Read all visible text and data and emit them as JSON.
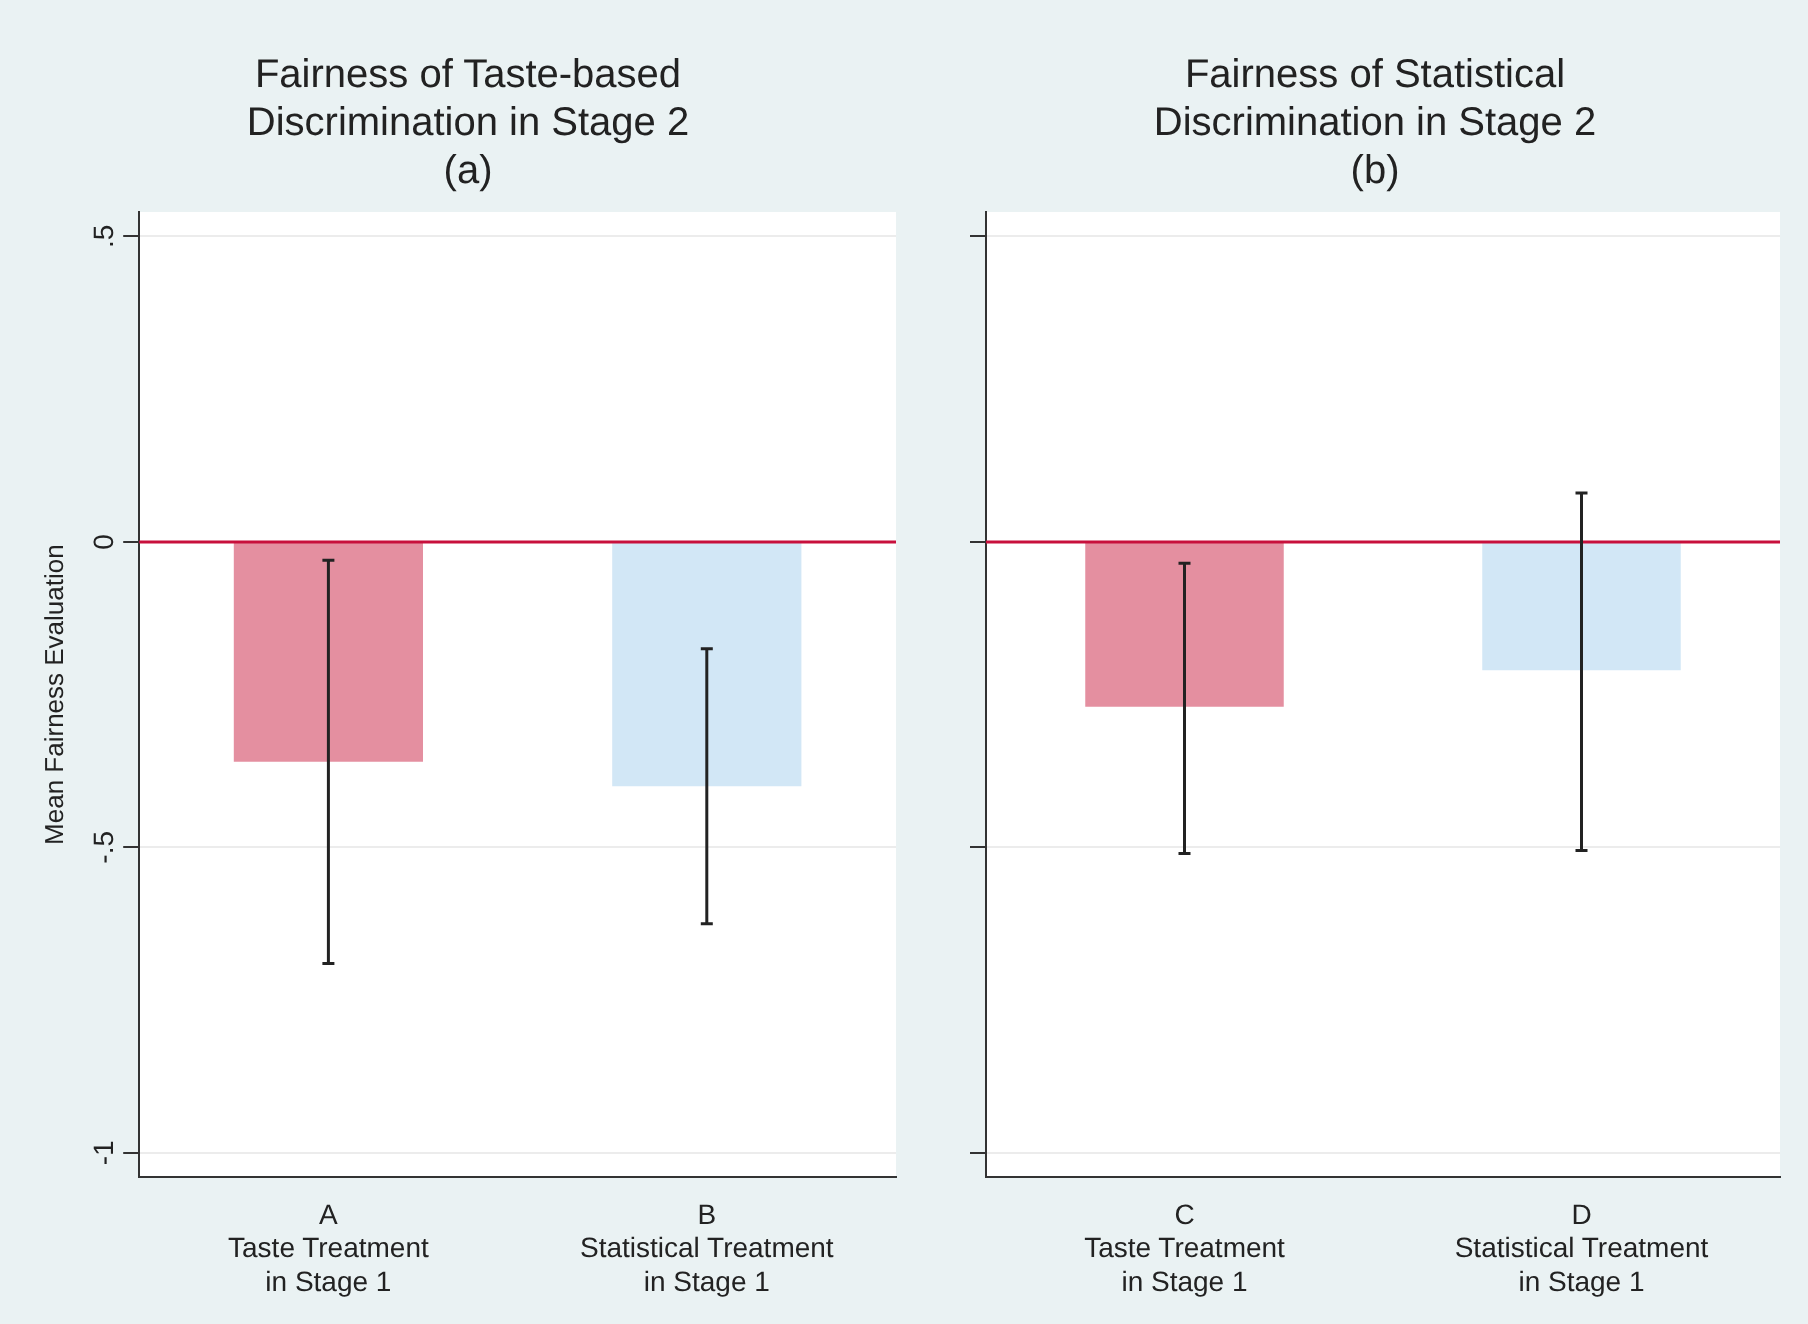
{
  "chart_data": [
    {
      "type": "bar",
      "title": "Fairness of Taste-based\nDiscrimination in Stage 2\n(a)",
      "ylabel": "Mean Fairness Evaluation",
      "categories": [
        "A\nTaste Treatment\nin Stage 1",
        "B\nStatistical Treatment\nin Stage 1"
      ],
      "values": [
        -0.36,
        -0.4
      ],
      "colors": [
        "#e48fa0",
        "#d2e7f6"
      ],
      "errors": [
        [
          -0.69,
          -0.03
        ],
        [
          -0.625,
          -0.175
        ]
      ],
      "ylim": [
        -1.04,
        0.54
      ],
      "yticks": [
        {
          "value": 0.5,
          "label": ".5"
        },
        0,
        {
          "value": -0.5,
          "label": "-.5"
        },
        -1
      ],
      "ref_lines": [
        {
          "axis": "y",
          "value": 0,
          "color": "#c8103c"
        }
      ],
      "grid": "y",
      "legend": false
    },
    {
      "type": "bar",
      "title": "Fairness of Statistical\nDiscrimination in Stage 2\n(b)",
      "categories": [
        "C\nTaste Treatment\nin Stage 1",
        "D\nStatistical Treatment\nin Stage 1"
      ],
      "values": [
        -0.27,
        -0.21
      ],
      "colors": [
        "#e48fa0",
        "#d2e7f6"
      ],
      "errors": [
        [
          -0.51,
          -0.035
        ],
        [
          -0.505,
          0.08
        ]
      ],
      "ylim": [
        -1.04,
        0.54
      ],
      "yticks": [
        {
          "value": 0.5,
          "label": null
        },
        {
          "value": 0,
          "label": null
        },
        {
          "value": -0.5,
          "label": null
        },
        {
          "value": -1,
          "label": null
        }
      ],
      "ref_lines": [
        {
          "axis": "y",
          "value": 0,
          "color": "#c8103c"
        }
      ],
      "grid": "y",
      "legend": false,
      "tick_labels": "x"
    }
  ]
}
